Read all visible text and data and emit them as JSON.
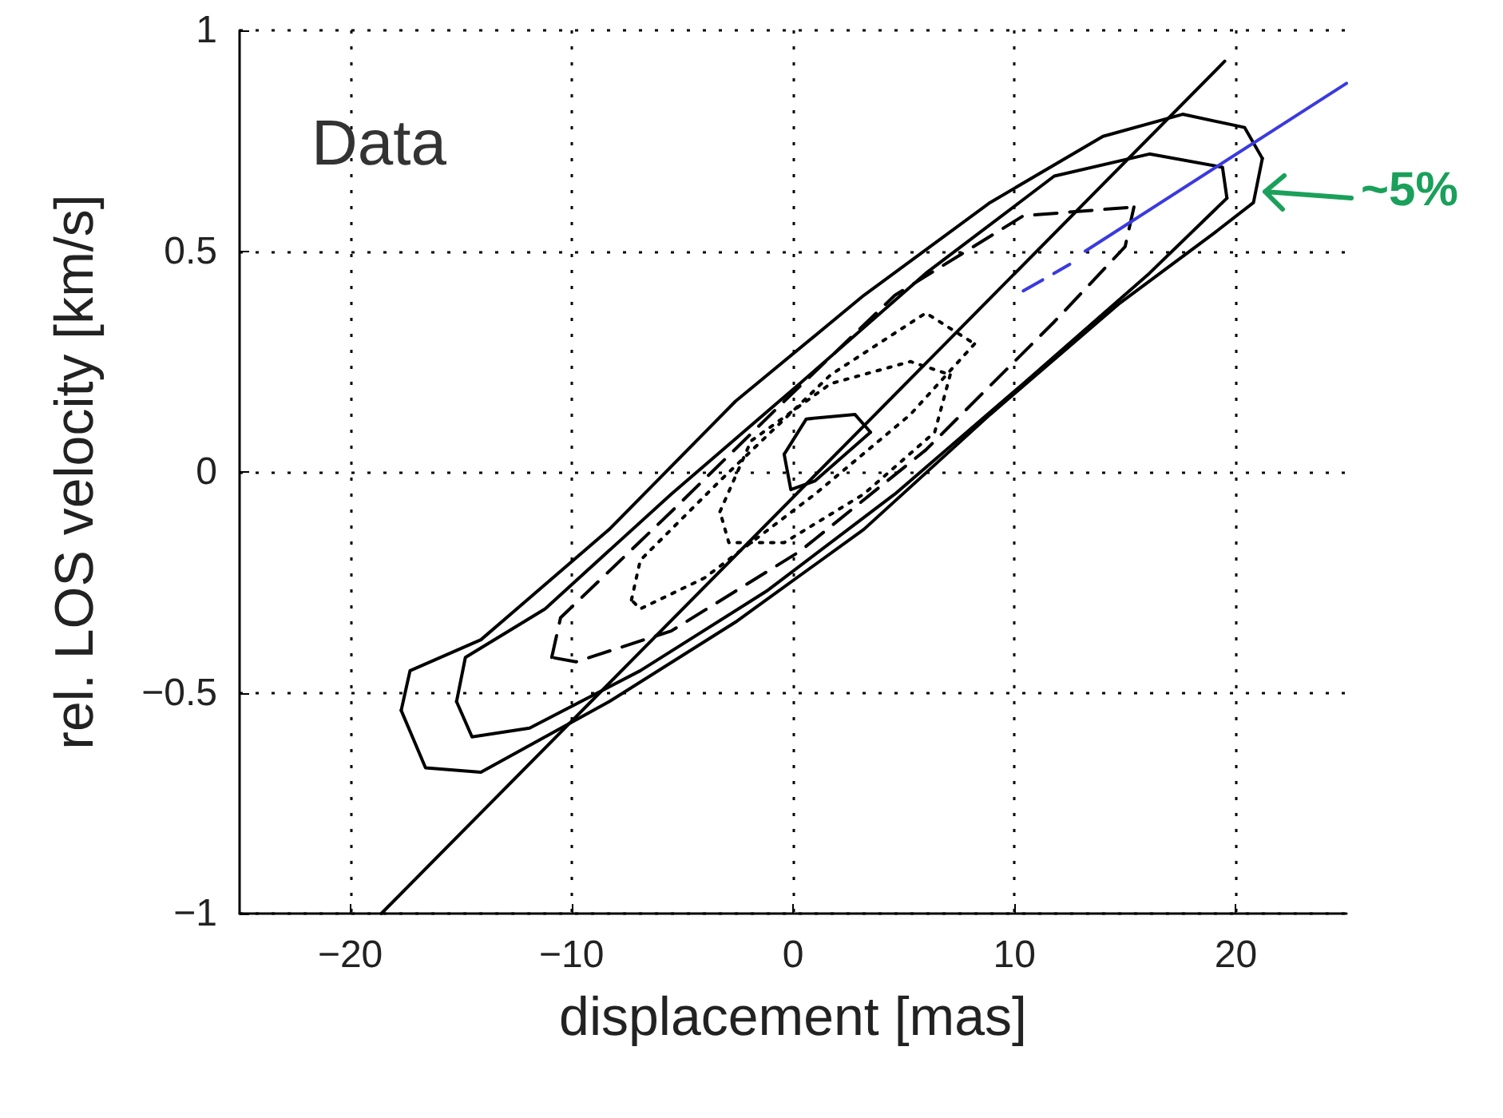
{
  "chart_data": {
    "type": "line",
    "xlabel": "displacement [mas]",
    "ylabel": "rel. LOS velocity [km/s]",
    "xlim": [
      -25,
      25
    ],
    "xticks": [
      -20,
      -10,
      0,
      10,
      20
    ],
    "ylim": [
      -1,
      1
    ],
    "yticks": [
      -1,
      -0.5,
      0,
      0.5,
      1
    ],
    "grid": true,
    "marker": "none",
    "annotations": [
      "Data",
      "~5%"
    ],
    "series": [
      {
        "color": "#000000",
        "line_style": "solid",
        "x": [
          -17.7,
          -17.3,
          -14.1,
          -8.3,
          -2.6,
          3.2,
          8.9,
          14.0,
          17.6,
          20.4,
          21.2
        ],
        "values": [
          -0.54,
          -0.45,
          -0.38,
          -0.13,
          0.16,
          0.4,
          0.61,
          0.76,
          0.81,
          0.78,
          0.71
        ]
      },
      {
        "color": "#000000",
        "line_style": "solid",
        "x": [
          21.2,
          20.8,
          19.0,
          14.7,
          8.9,
          3.2,
          -2.6,
          -8.3,
          -14.1,
          -16.6,
          -17.7
        ],
        "values": [
          0.71,
          0.61,
          0.54,
          0.38,
          0.13,
          -0.13,
          -0.34,
          -0.52,
          -0.68,
          -0.67,
          -0.54
        ]
      },
      {
        "color": "#000000",
        "line_style": "solid",
        "x": [
          -15.2,
          -14.8,
          -11.2,
          -5.5,
          0.3,
          6.0,
          11.8,
          16.1,
          19.4,
          19.6
        ],
        "values": [
          -0.52,
          -0.42,
          -0.31,
          -0.05,
          0.2,
          0.45,
          0.67,
          0.72,
          0.69,
          0.62
        ]
      },
      {
        "color": "#000000",
        "line_style": "solid",
        "x": [
          19.6,
          16.1,
          10.4,
          4.6,
          -1.2,
          -6.9,
          -11.9,
          -14.5,
          -15.2
        ],
        "values": [
          0.62,
          0.45,
          0.2,
          -0.05,
          -0.27,
          -0.45,
          -0.58,
          -0.6,
          -0.52
        ]
      },
      {
        "color": "#000000",
        "line_style": "dashed",
        "x": [
          -10.9,
          -10.5,
          -5.5,
          -0.4,
          4.6,
          10.4,
          15.4
        ],
        "values": [
          -0.42,
          -0.33,
          -0.09,
          0.16,
          0.4,
          0.58,
          0.6
        ]
      },
      {
        "color": "#000000",
        "line_style": "dashed",
        "x": [
          15.4,
          15.0,
          11.8,
          6.0,
          0.3,
          -5.5,
          -9.8,
          -10.9
        ],
        "values": [
          0.6,
          0.51,
          0.34,
          0.05,
          -0.18,
          -0.36,
          -0.43,
          -0.42
        ]
      },
      {
        "color": "#000000",
        "line_style": "dotted",
        "x": [
          -7.3,
          -6.9,
          -3.3,
          1.7,
          6.0,
          8.2
        ],
        "values": [
          -0.29,
          -0.2,
          -0.02,
          0.22,
          0.36,
          0.29
        ]
      },
      {
        "color": "#000000",
        "line_style": "dotted",
        "x": [
          8.2,
          5.3,
          1.0,
          -4.0,
          -6.9,
          -7.3
        ],
        "values": [
          0.29,
          0.13,
          -0.05,
          -0.24,
          -0.31,
          -0.29
        ]
      },
      {
        "color": "#000000",
        "line_style": "dotted",
        "x": [
          -3.3,
          -1.9,
          1.7,
          5.3,
          7.1
        ],
        "values": [
          -0.09,
          0.07,
          0.2,
          0.25,
          0.22
        ]
      },
      {
        "color": "#000000",
        "line_style": "dotted",
        "x": [
          7.1,
          6.4,
          3.2,
          -0.4,
          -2.9,
          -3.3
        ],
        "values": [
          0.22,
          0.09,
          -0.05,
          -0.16,
          -0.16,
          -0.09
        ]
      },
      {
        "color": "#000000",
        "line_style": "solid",
        "x": [
          -0.4,
          0.6,
          2.8,
          3.5
        ],
        "values": [
          0.04,
          0.12,
          0.13,
          0.09
        ]
      },
      {
        "color": "#000000",
        "line_style": "solid",
        "x": [
          3.5,
          1.0,
          -0.1,
          -0.4
        ],
        "values": [
          0.09,
          -0.02,
          -0.04,
          0.04
        ]
      },
      {
        "color": "#000000",
        "line_style": "solid",
        "x": [
          -18.6,
          19.5
        ],
        "values": [
          -1,
          0.93
        ]
      },
      {
        "color": "#3a3ae0",
        "line_style": "dashed",
        "x": [
          10.4,
          12.5
        ],
        "values": [
          0.41,
          0.47
        ]
      },
      {
        "color": "#3a3ae0",
        "line_style": "solid",
        "x": [
          13.2,
          25
        ],
        "values": [
          0.5,
          0.88
        ]
      }
    ]
  }
}
